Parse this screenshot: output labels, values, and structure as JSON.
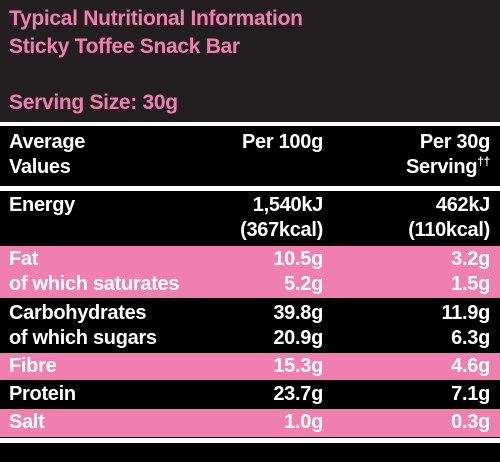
{
  "header": {
    "title_line1": "Typical Nutritional Information",
    "title_line2": "Sticky Toffee Snack Bar",
    "serving_size": "Serving Size: 30g"
  },
  "columns": {
    "label_line1": "Average",
    "label_line2": "Values",
    "per100_line1": "Per 100g",
    "per30_line1": "Per 30g",
    "per30_line2": "Serving",
    "per30_mark": "††"
  },
  "rows": [
    {
      "label": "Energy",
      "per100": "1,540kJ",
      "per30": "462kJ"
    },
    {
      "label": "",
      "per100": "(367kcal)",
      "per30": "(110kcal)"
    },
    {
      "label": "Fat",
      "per100": "10.5g",
      "per30": "3.2g"
    },
    {
      "label": "of which saturates",
      "per100": "5.2g",
      "per30": "1.5g"
    },
    {
      "label": "Carbohydrates",
      "per100": "39.8g",
      "per30": "11.9g"
    },
    {
      "label": "of which sugars",
      "per100": "20.9g",
      "per30": "6.3g"
    },
    {
      "label": "Fibre",
      "per100": "15.3g",
      "per30": "4.6g"
    },
    {
      "label": "Protein",
      "per100": "23.7g",
      "per30": "7.1g"
    },
    {
      "label": "Salt",
      "per100": "1.0g",
      "per30": "0.3g"
    }
  ],
  "colors": {
    "accent": "#f07fb0",
    "background": "#231f20",
    "table": "#000000"
  }
}
